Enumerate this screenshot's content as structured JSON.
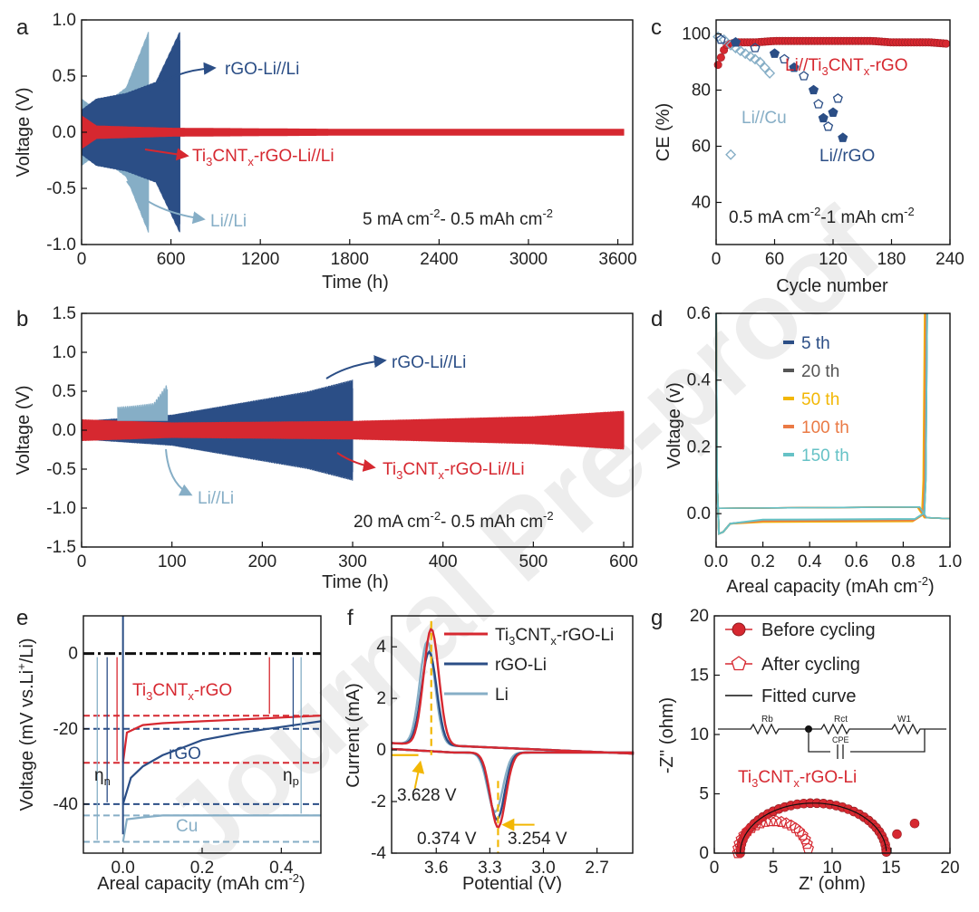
{
  "panels": {
    "a": {
      "label": "a"
    },
    "b": {
      "label": "b"
    },
    "c": {
      "label": "c"
    },
    "d": {
      "label": "d"
    },
    "e": {
      "label": "e"
    },
    "f": {
      "label": "f"
    },
    "g": {
      "label": "g"
    }
  },
  "watermark": "Journal Pre-proof",
  "colors": {
    "red": "#d62830",
    "navy": "#2b4e86",
    "light_blue": "#86aec6",
    "black": "#111111",
    "gold": "#f2b705",
    "orange": "#ea7a45",
    "teal": "#66c2c6",
    "gray": "#555555"
  },
  "chart_data": [
    {
      "id": "a",
      "type": "line",
      "xlabel": "Time (h)",
      "ylabel": "Voltage (V)",
      "xlim": [
        0,
        3700
      ],
      "ylim": [
        -1.0,
        1.0
      ],
      "xticks": [
        "0",
        "600",
        "1200",
        "1800",
        "2400",
        "3000",
        "3600"
      ],
      "yticks": [
        "-1.0",
        "-0.5",
        "0.0",
        "0.5",
        "1.0"
      ],
      "series": [
        {
          "name": "rGO-Li//Li",
          "envelope_time": [
            0,
            100,
            300,
            500,
            660
          ],
          "envelope_voltage": [
            0.2,
            0.3,
            0.35,
            0.45,
            0.9
          ]
        },
        {
          "name": "Ti3CNTx-rGO-Li//Li",
          "envelope_time": [
            0,
            100,
            600,
            1800,
            3640
          ],
          "envelope_voltage": [
            0.15,
            0.06,
            0.04,
            0.03,
            0.03
          ]
        },
        {
          "name": "Li//Li",
          "envelope_time": [
            0,
            100,
            300,
            450
          ],
          "envelope_voltage": [
            0.3,
            0.2,
            0.4,
            0.9
          ]
        }
      ],
      "annotations": {
        "rgo": "rGO-Li//Li",
        "ti_pre": "Ti",
        "ti_sub1": "3",
        "ti_mid": "CNT",
        "ti_sub2": "x",
        "ti_post": "-rGO-Li//Li",
        "li": "Li//Li",
        "cond_1": "5 mA cm",
        "cond_sup1": "-2",
        "cond_2": "- 0.5 mAh cm",
        "cond_sup2": "-2"
      }
    },
    {
      "id": "b",
      "type": "line",
      "xlabel": "Time (h)",
      "ylabel": "Voltage (V)",
      "xlim": [
        0,
        610
      ],
      "ylim": [
        -1.5,
        1.5
      ],
      "xticks": [
        "0",
        "100",
        "200",
        "300",
        "400",
        "500",
        "600"
      ],
      "yticks": [
        "-1.5",
        "-1.0",
        "-0.5",
        "0.0",
        "0.5",
        "1.0",
        "1.5"
      ],
      "series": [
        {
          "name": "rGO-Li//Li",
          "envelope_time": [
            0,
            100,
            150,
            200,
            250,
            300
          ],
          "envelope_voltage": [
            0.12,
            0.2,
            0.3,
            0.4,
            0.5,
            0.65
          ]
        },
        {
          "name": "Ti3CNTx-rGO-Li//Li",
          "envelope_time": [
            0,
            100,
            300,
            500,
            600
          ],
          "envelope_voltage": [
            0.14,
            0.1,
            0.12,
            0.18,
            0.25
          ]
        },
        {
          "name": "Li//Li",
          "envelope_time": [
            40,
            60,
            80,
            95
          ],
          "envelope_voltage": [
            0.3,
            0.32,
            0.35,
            0.6
          ]
        }
      ],
      "annotations": {
        "rgo": "rGO-Li//Li",
        "ti_pre": "Ti",
        "ti_sub1": "3",
        "ti_mid": "CNT",
        "ti_sub2": "x",
        "ti_post": "-rGO-Li//Li",
        "li": "Li//Li",
        "cond_1": "20 mA cm",
        "cond_sup1": "-2",
        "cond_2": "- 0.5 mAh cm",
        "cond_sup2": "-2"
      }
    },
    {
      "id": "c",
      "type": "scatter",
      "xlabel": "Cycle number",
      "ylabel": "CE (%)",
      "xlim": [
        0,
        240
      ],
      "ylim": [
        25,
        105
      ],
      "xticks": [
        "0",
        "60",
        "120",
        "180",
        "240"
      ],
      "yticks": [
        "40",
        "60",
        "80",
        "100"
      ],
      "series": [
        {
          "name": "Li//Ti3CNTx-rGO",
          "x": [
            2,
            10,
            20,
            40,
            60,
            80,
            100,
            120,
            140,
            160,
            180,
            200,
            220,
            238
          ],
          "y": [
            89,
            96,
            97,
            97,
            97.5,
            97.5,
            97.5,
            97.5,
            97.5,
            97.5,
            97,
            97,
            97,
            96.5
          ]
        },
        {
          "name": "Li//Cu",
          "x": [
            2,
            8,
            15,
            20,
            25,
            30,
            35,
            40,
            45,
            50,
            55,
            15
          ],
          "y": [
            99,
            98,
            96,
            95,
            94,
            93,
            92,
            91,
            90,
            88,
            86,
            57
          ]
        },
        {
          "name": "Li//rGO",
          "x": [
            5,
            20,
            40,
            60,
            70,
            80,
            90,
            100,
            105,
            110,
            115,
            120,
            125,
            130
          ],
          "y": [
            98,
            97,
            95,
            93,
            91,
            88,
            85,
            80,
            75,
            70,
            67,
            72,
            77,
            63
          ]
        }
      ],
      "annotations": {
        "tirgo_pre": "Li//Ti",
        "tirgo_s1": "3",
        "tirgo_mid": "CNT",
        "tirgo_s2": "x",
        "tirgo_post": "-rGO",
        "cu": "Li//Cu",
        "rgo": "Li//rGO",
        "cond_1": "0.5 mA cm",
        "cond_sup1": "-2",
        "cond_2": "-1 mAh cm",
        "cond_sup2": "-2"
      }
    },
    {
      "id": "d",
      "type": "line",
      "xlabel": "Areal capacity (mAh cm",
      "xlabel_sup": "-2",
      "xlabel_end": ")",
      "ylabel": "Voltage (v)",
      "xlim": [
        0,
        1.0
      ],
      "ylim": [
        -0.1,
        0.6
      ],
      "xticks": [
        "0.0",
        "0.2",
        "0.4",
        "0.6",
        "0.8",
        "1.0"
      ],
      "yticks": [
        "0.0",
        "0.2",
        "0.4",
        "0.6"
      ],
      "series": [
        {
          "name": "5 th",
          "plateau_voltage": -0.02,
          "capacity_end": 0.89
        },
        {
          "name": "20 th",
          "plateau_voltage": -0.022,
          "capacity_end": 0.885
        },
        {
          "name": "50 th",
          "plateau_voltage": -0.025,
          "capacity_end": 0.88
        },
        {
          "name": "100 th",
          "plateau_voltage": -0.022,
          "capacity_end": 0.885
        },
        {
          "name": "150 th",
          "plateau_voltage": -0.018,
          "capacity_end": 0.89
        }
      ]
    },
    {
      "id": "e",
      "type": "line",
      "xlabel": "Areal capacity (mAh cm",
      "xlabel_sup": "-2",
      "xlabel_end": ")",
      "ylabel": "Voltage (mV vs.Li",
      "ylabel_sup": "+",
      "ylabel_end": "/Li)",
      "xlim": [
        -0.1,
        0.5
      ],
      "ylim": [
        -53,
        10
      ],
      "xticks": [
        "0.0",
        "0.2",
        "0.4"
      ],
      "yticks": [
        "-40",
        "-20",
        "0"
      ],
      "series": [
        {
          "name": "Ti3CNTx-rGO",
          "x": [
            0.0,
            0.01,
            0.05,
            0.1,
            0.2,
            0.3,
            0.4,
            0.5
          ],
          "y": [
            -29,
            -21,
            -19,
            -18.5,
            -18,
            -17.5,
            -17,
            -16.5
          ]
        },
        {
          "name": "rGO",
          "x": [
            0.0,
            0.02,
            0.05,
            0.1,
            0.15,
            0.2,
            0.3,
            0.4,
            0.5
          ],
          "y": [
            -40,
            -33,
            -30,
            -27,
            -25,
            -23,
            -21,
            -19.5,
            -18
          ]
        },
        {
          "name": "Cu",
          "x": [
            0.0,
            0.01,
            0.05,
            0.1,
            0.2,
            0.3,
            0.4,
            0.5
          ],
          "y": [
            -50,
            -44,
            -43.5,
            -43,
            -43,
            -43,
            -43,
            -43
          ]
        }
      ],
      "annotations": {
        "ti_pre": "Ti",
        "ti_s1": "3",
        "ti_mid": "CNT",
        "ti_s2": "x",
        "ti_post": "-rGO",
        "rgo": "rGO",
        "cu": "Cu",
        "eta_n": "η",
        "eta_n_sub": "n",
        "eta_p": "η",
        "eta_p_sub": "p"
      }
    },
    {
      "id": "f",
      "type": "line",
      "xlabel": "Potential (V)",
      "ylabel": "Current (mA)",
      "xlim": [
        3.85,
        2.5
      ],
      "ylim": [
        -4,
        5.2
      ],
      "xticks": [
        "3.6",
        "3.3",
        "3.0",
        "2.7"
      ],
      "yticks": [
        "-4",
        "-2",
        "0",
        "2",
        "4"
      ],
      "series": [
        {
          "name": "Ti3CNTx-rGO-Li",
          "peak_anodic_V": 3.628,
          "peak_anodic_mA": 4.5,
          "peak_cathodic_V": 3.254,
          "peak_cathodic_mA": -2.9
        },
        {
          "name": "rGO-Li",
          "peak_anodic_V": 3.64,
          "peak_anodic_mA": 3.6,
          "peak_cathodic_V": 3.26,
          "peak_cathodic_mA": -2.6
        },
        {
          "name": "Li",
          "peak_anodic_V": 3.65,
          "peak_anodic_mA": 4.0,
          "peak_cathodic_V": 3.27,
          "peak_cathodic_mA": -2.3
        }
      ],
      "annotations": {
        "ti_pre": "Ti",
        "ti_s1": "3",
        "ti_mid": "CNT",
        "ti_s2": "x",
        "ti_post": "-rGO-Li",
        "rgo": "rGO-Li",
        "li": "Li",
        "v1": "3.628 V",
        "v2": "0.374 V",
        "v3": "3.254 V"
      }
    },
    {
      "id": "g",
      "type": "scatter",
      "xlabel": "Z' (ohm)",
      "ylabel": "-Z'' (ohm)",
      "xlim": [
        0,
        20
      ],
      "ylim": [
        0,
        20
      ],
      "xticks": [
        "0",
        "5",
        "10",
        "15",
        "20"
      ],
      "yticks": [
        "0",
        "5",
        "10",
        "15",
        "20"
      ],
      "series": [
        {
          "name": "Before cycling",
          "center": 8.4,
          "radius": 6.2,
          "tail": [
            [
              14.6,
              0.1
            ],
            [
              15.5,
              1.6
            ],
            [
              17,
              2.5
            ]
          ]
        },
        {
          "name": "After cycling",
          "center": 5.0,
          "radius": 3.0,
          "tail": [
            [
              8,
              0.2
            ],
            [
              9,
              2.5
            ]
          ]
        },
        {
          "name": "Fitted curve"
        }
      ],
      "circuit": {
        "rb": "Rb",
        "rct": "Rct",
        "w1": "W1",
        "cpe": "CPE"
      },
      "annotations": {
        "ti_pre": "Ti",
        "ti_s1": "3",
        "ti_mid": "CNT",
        "ti_s2": "x",
        "ti_post": "-rGO-Li"
      }
    }
  ]
}
